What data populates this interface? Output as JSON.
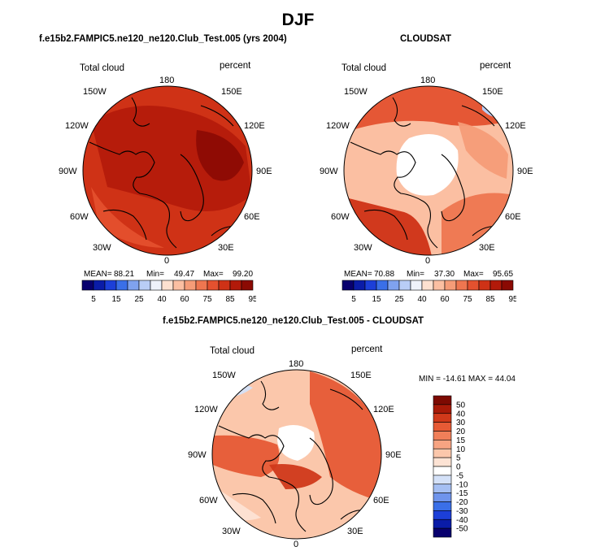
{
  "title": "DJF",
  "colors": {
    "abs_scale": [
      "#08006e",
      "#0a1ca8",
      "#1c3fd8",
      "#3a6fe8",
      "#7fa2ef",
      "#b9cdf6",
      "#eef2fb",
      "#fde0d0",
      "#fbbfa2",
      "#f59c78",
      "#ee7650",
      "#e4512f",
      "#cf3216",
      "#b21a0a",
      "#8b0a03"
    ],
    "diff_scale": [
      "#08006e",
      "#0a1ca8",
      "#1c3fd8",
      "#3a6fe8",
      "#6f94ec",
      "#a5bff3",
      "#d4e1f8",
      "#ffffff",
      "#fde3d4",
      "#fbc7ab",
      "#f7a482",
      "#f07f59",
      "#e65a35",
      "#d0391a",
      "#a81a08",
      "#7d0a02"
    ]
  },
  "panels": {
    "model": {
      "title": "f.e15b2.FAMPIC5.ne120_ne120.Club_Test.005 (yrs 2004)",
      "var_label": "Total cloud",
      "units": "percent",
      "stats": {
        "mean_label": "MEAN=",
        "mean": "88.21",
        "min_label": "Min=",
        "min": "49.47",
        "max_label": "Max=",
        "max": "99.20"
      }
    },
    "obs": {
      "title": "CLOUDSAT",
      "var_label": "Total cloud",
      "units": "percent",
      "stats": {
        "mean_label": "MEAN=",
        "mean": "70.88",
        "min_label": "Min=",
        "min": "37.30",
        "max_label": "Max=",
        "max": "95.65"
      }
    },
    "diff": {
      "title": "f.e15b2.FAMPIC5.ne120_ne120.Club_Test.005 - CLOUDSAT",
      "var_label": "Total cloud",
      "units": "percent",
      "minmax": "MIN = -14.61 MAX =  44.04"
    }
  },
  "lon_labels": {
    "top": "180",
    "nw1": "150W",
    "ne1": "150E",
    "nw2": "120W",
    "ne2": "120E",
    "w": "90W",
    "e": "90E",
    "sw2": "60W",
    "se2": "60E",
    "sw1": "30W",
    "se1": "30E",
    "bottom": "0"
  },
  "abs_ticks": [
    "5",
    "15",
    "25",
    "40",
    "60",
    "75",
    "85",
    "95"
  ],
  "diff_ticks": [
    "50",
    "40",
    "30",
    "20",
    "15",
    "10",
    "5",
    "0",
    "-5",
    "-10",
    "-15",
    "-20",
    "-30",
    "-40",
    "-50"
  ]
}
